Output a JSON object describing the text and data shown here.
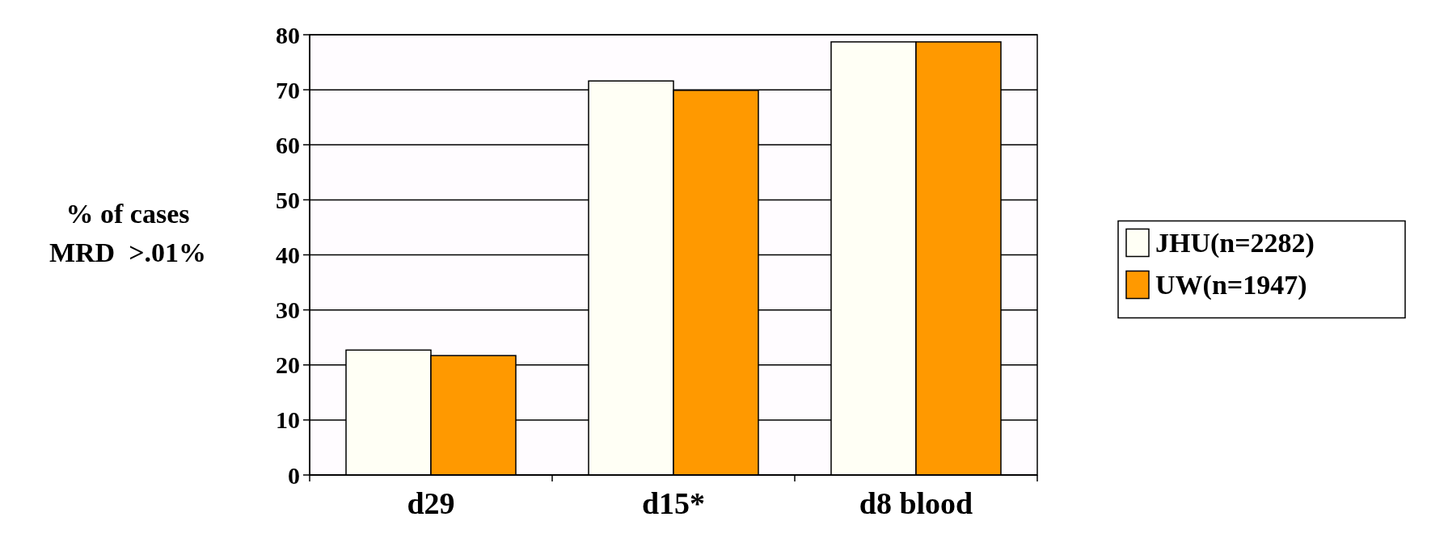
{
  "chart_data": {
    "type": "bar",
    "ylabel": "% of cases\nMRD  >.01%",
    "categories": [
      "d29",
      "d15*",
      "d8 blood"
    ],
    "series": [
      {
        "name": "JHU(n=2282)",
        "color": "#fffff5",
        "values": [
          22.7,
          71.6,
          78.7
        ]
      },
      {
        "name": "UW(n=1947)",
        "color": "#ff9900",
        "values": [
          21.7,
          69.9,
          78.7
        ]
      }
    ],
    "ylim": [
      0,
      80
    ],
    "yticks": [
      0,
      10,
      20,
      30,
      40,
      50,
      60,
      70,
      80
    ],
    "grid": "y",
    "legend": "right"
  }
}
